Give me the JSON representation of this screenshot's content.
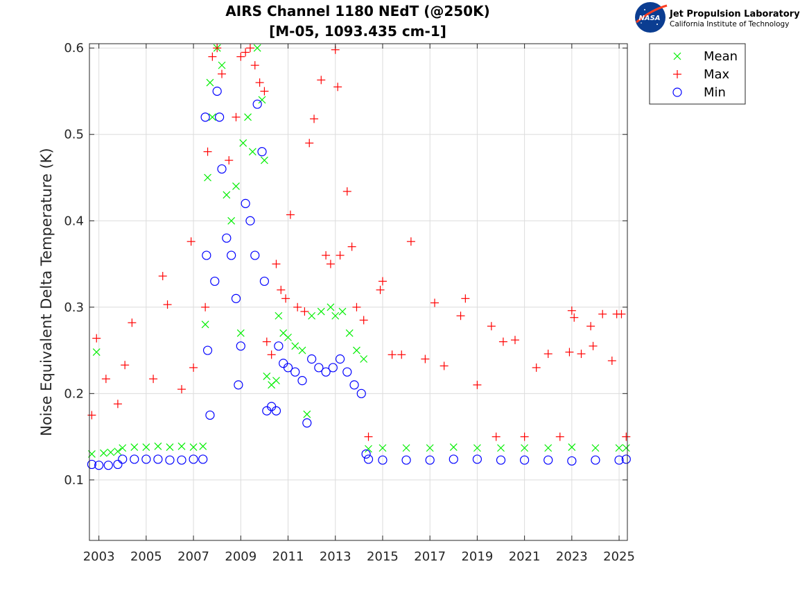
{
  "logo": {
    "badge_text": "NASA",
    "org_name": "Jet Propulsion Laboratory",
    "org_sub": "California Institute of Technology"
  },
  "chart_data": {
    "type": "scatter",
    "title": "AIRS Channel 1180 NEdT (@250K)",
    "subtitle": "[M-05, 1093.435 cm-1]",
    "xlabel": "",
    "ylabel": "Noise Equivalent Delta Temperature (K)",
    "xlim": [
      2002.6,
      2025.35
    ],
    "ylim": [
      0.03,
      0.605
    ],
    "x_ticks": [
      2003,
      2005,
      2007,
      2009,
      2011,
      2013,
      2015,
      2017,
      2019,
      2021,
      2023,
      2025
    ],
    "x_tick_labels": [
      "2003",
      "2005",
      "2007",
      "2009",
      "2011",
      "2013",
      "2015",
      "2017",
      "2019",
      "2021",
      "2023",
      "2025"
    ],
    "y_ticks": [
      0.1,
      0.2,
      0.3,
      0.4,
      0.5,
      0.6
    ],
    "y_tick_labels": [
      "0.1",
      "0.2",
      "0.3",
      "0.4",
      "0.5",
      "0.6"
    ],
    "grid": true,
    "legend_position": "outside-top-right",
    "series": [
      {
        "name": "Mean",
        "marker": "x",
        "color": "#00ee00",
        "points": [
          [
            2002.7,
            0.13
          ],
          [
            2002.9,
            0.248
          ],
          [
            2003.2,
            0.131
          ],
          [
            2003.5,
            0.132
          ],
          [
            2003.8,
            0.133
          ],
          [
            2004.0,
            0.137
          ],
          [
            2004.5,
            0.138
          ],
          [
            2005.0,
            0.138
          ],
          [
            2005.5,
            0.139
          ],
          [
            2006.0,
            0.138
          ],
          [
            2006.5,
            0.139
          ],
          [
            2007.0,
            0.138
          ],
          [
            2007.4,
            0.139
          ],
          [
            2007.5,
            0.28
          ],
          [
            2007.6,
            0.45
          ],
          [
            2007.7,
            0.56
          ],
          [
            2007.8,
            0.52
          ],
          [
            2008.0,
            0.6
          ],
          [
            2008.2,
            0.58
          ],
          [
            2008.4,
            0.43
          ],
          [
            2008.6,
            0.4
          ],
          [
            2008.8,
            0.44
          ],
          [
            2009.0,
            0.27
          ],
          [
            2009.1,
            0.49
          ],
          [
            2009.3,
            0.52
          ],
          [
            2009.5,
            0.48
          ],
          [
            2009.7,
            0.6
          ],
          [
            2009.9,
            0.54
          ],
          [
            2010.0,
            0.47
          ],
          [
            2010.1,
            0.22
          ],
          [
            2010.3,
            0.21
          ],
          [
            2010.5,
            0.215
          ],
          [
            2010.6,
            0.29
          ],
          [
            2010.8,
            0.27
          ],
          [
            2011.0,
            0.265
          ],
          [
            2011.3,
            0.255
          ],
          [
            2011.6,
            0.25
          ],
          [
            2011.8,
            0.176
          ],
          [
            2012.0,
            0.29
          ],
          [
            2012.4,
            0.295
          ],
          [
            2012.8,
            0.3
          ],
          [
            2013.0,
            0.29
          ],
          [
            2013.3,
            0.295
          ],
          [
            2013.6,
            0.27
          ],
          [
            2013.9,
            0.25
          ],
          [
            2014.2,
            0.24
          ],
          [
            2014.4,
            0.136
          ],
          [
            2015.0,
            0.137
          ],
          [
            2016.0,
            0.137
          ],
          [
            2017.0,
            0.137
          ],
          [
            2018.0,
            0.138
          ],
          [
            2019.0,
            0.137
          ],
          [
            2020.0,
            0.137
          ],
          [
            2021.0,
            0.137
          ],
          [
            2022.0,
            0.137
          ],
          [
            2023.0,
            0.138
          ],
          [
            2024.0,
            0.137
          ],
          [
            2025.0,
            0.137
          ],
          [
            2025.3,
            0.137
          ]
        ]
      },
      {
        "name": "Max",
        "marker": "+",
        "color": "#ff0000",
        "points": [
          [
            2002.7,
            0.175
          ],
          [
            2002.9,
            0.264
          ],
          [
            2003.3,
            0.217
          ],
          [
            2003.8,
            0.188
          ],
          [
            2004.1,
            0.233
          ],
          [
            2004.4,
            0.282
          ],
          [
            2005.3,
            0.217
          ],
          [
            2005.7,
            0.336
          ],
          [
            2005.9,
            0.303
          ],
          [
            2006.5,
            0.205
          ],
          [
            2006.9,
            0.376
          ],
          [
            2007.0,
            0.23
          ],
          [
            2007.5,
            0.3
          ],
          [
            2007.6,
            0.48
          ],
          [
            2007.8,
            0.59
          ],
          [
            2008.0,
            0.6
          ],
          [
            2008.2,
            0.57
          ],
          [
            2008.5,
            0.47
          ],
          [
            2008.8,
            0.52
          ],
          [
            2009.0,
            0.59
          ],
          [
            2009.2,
            0.595
          ],
          [
            2009.4,
            0.6
          ],
          [
            2009.6,
            0.58
          ],
          [
            2009.8,
            0.56
          ],
          [
            2010.0,
            0.55
          ],
          [
            2010.1,
            0.26
          ],
          [
            2010.3,
            0.245
          ],
          [
            2010.5,
            0.35
          ],
          [
            2010.7,
            0.32
          ],
          [
            2010.9,
            0.31
          ],
          [
            2011.1,
            0.407
          ],
          [
            2011.4,
            0.3
          ],
          [
            2011.7,
            0.295
          ],
          [
            2011.9,
            0.49
          ],
          [
            2012.1,
            0.518
          ],
          [
            2012.4,
            0.563
          ],
          [
            2012.6,
            0.36
          ],
          [
            2012.8,
            0.35
          ],
          [
            2013.0,
            0.598
          ],
          [
            2013.1,
            0.555
          ],
          [
            2013.2,
            0.36
          ],
          [
            2013.5,
            0.434
          ],
          [
            2013.7,
            0.37
          ],
          [
            2013.9,
            0.3
          ],
          [
            2014.2,
            0.285
          ],
          [
            2014.4,
            0.15
          ],
          [
            2014.9,
            0.32
          ],
          [
            2015.0,
            0.33
          ],
          [
            2015.4,
            0.245
          ],
          [
            2015.8,
            0.245
          ],
          [
            2016.2,
            0.376
          ],
          [
            2016.8,
            0.24
          ],
          [
            2017.2,
            0.305
          ],
          [
            2017.6,
            0.232
          ],
          [
            2018.3,
            0.29
          ],
          [
            2018.5,
            0.31
          ],
          [
            2019.0,
            0.21
          ],
          [
            2019.6,
            0.278
          ],
          [
            2019.8,
            0.15
          ],
          [
            2020.1,
            0.26
          ],
          [
            2020.6,
            0.262
          ],
          [
            2021.0,
            0.15
          ],
          [
            2021.5,
            0.23
          ],
          [
            2022.0,
            0.246
          ],
          [
            2022.5,
            0.15
          ],
          [
            2022.9,
            0.248
          ],
          [
            2023.0,
            0.296
          ],
          [
            2023.1,
            0.288
          ],
          [
            2023.4,
            0.246
          ],
          [
            2023.8,
            0.278
          ],
          [
            2023.9,
            0.255
          ],
          [
            2024.3,
            0.292
          ],
          [
            2024.7,
            0.238
          ],
          [
            2024.9,
            0.292
          ],
          [
            2025.1,
            0.292
          ],
          [
            2025.3,
            0.15
          ]
        ]
      },
      {
        "name": "Min",
        "marker": "o",
        "color": "#0000ff",
        "points": [
          [
            2002.7,
            0.118
          ],
          [
            2003.0,
            0.117
          ],
          [
            2003.4,
            0.117
          ],
          [
            2003.8,
            0.118
          ],
          [
            2004.0,
            0.124
          ],
          [
            2004.5,
            0.124
          ],
          [
            2005.0,
            0.124
          ],
          [
            2005.5,
            0.124
          ],
          [
            2006.0,
            0.123
          ],
          [
            2006.5,
            0.123
          ],
          [
            2007.0,
            0.124
          ],
          [
            2007.4,
            0.124
          ],
          [
            2007.5,
            0.52
          ],
          [
            2007.55,
            0.36
          ],
          [
            2007.6,
            0.25
          ],
          [
            2007.7,
            0.175
          ],
          [
            2007.9,
            0.33
          ],
          [
            2008.0,
            0.55
          ],
          [
            2008.1,
            0.52
          ],
          [
            2008.2,
            0.46
          ],
          [
            2008.4,
            0.38
          ],
          [
            2008.6,
            0.36
          ],
          [
            2008.8,
            0.31
          ],
          [
            2008.9,
            0.21
          ],
          [
            2009.0,
            0.255
          ],
          [
            2009.2,
            0.42
          ],
          [
            2009.4,
            0.4
          ],
          [
            2009.6,
            0.36
          ],
          [
            2009.7,
            0.535
          ],
          [
            2009.9,
            0.48
          ],
          [
            2010.0,
            0.33
          ],
          [
            2010.1,
            0.18
          ],
          [
            2010.3,
            0.185
          ],
          [
            2010.5,
            0.18
          ],
          [
            2010.6,
            0.255
          ],
          [
            2010.8,
            0.235
          ],
          [
            2011.0,
            0.23
          ],
          [
            2011.3,
            0.225
          ],
          [
            2011.6,
            0.215
          ],
          [
            2011.8,
            0.166
          ],
          [
            2012.0,
            0.24
          ],
          [
            2012.3,
            0.23
          ],
          [
            2012.6,
            0.225
          ],
          [
            2012.9,
            0.23
          ],
          [
            2013.2,
            0.24
          ],
          [
            2013.5,
            0.225
          ],
          [
            2013.8,
            0.21
          ],
          [
            2014.1,
            0.2
          ],
          [
            2014.3,
            0.13
          ],
          [
            2014.4,
            0.124
          ],
          [
            2015.0,
            0.123
          ],
          [
            2016.0,
            0.123
          ],
          [
            2017.0,
            0.123
          ],
          [
            2018.0,
            0.124
          ],
          [
            2019.0,
            0.124
          ],
          [
            2020.0,
            0.123
          ],
          [
            2021.0,
            0.123
          ],
          [
            2022.0,
            0.123
          ],
          [
            2023.0,
            0.122
          ],
          [
            2024.0,
            0.123
          ],
          [
            2025.0,
            0.123
          ],
          [
            2025.3,
            0.124
          ]
        ]
      }
    ]
  }
}
